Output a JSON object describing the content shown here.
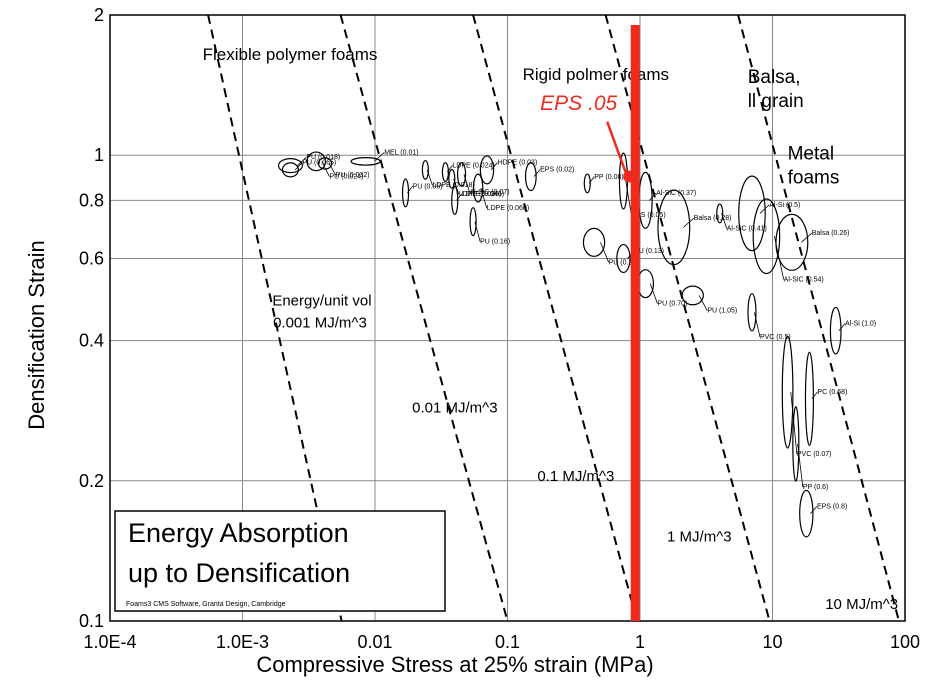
{
  "chart_data": {
    "type": "scatter",
    "title": "Energy Absorption up to Densification",
    "title_lines": [
      "Energy Absorption",
      "up to Densification"
    ],
    "credit": "Foams3  CMS Software, Granta Design, Cambridge",
    "xlabel": "Compressive Stress at 25% strain (MPa)",
    "ylabel": "Densification Strain",
    "x_scale": "log",
    "y_scale": "log",
    "xlim": [
      0.0001,
      100
    ],
    "ylim": [
      0.1,
      2
    ],
    "x_ticks": [
      {
        "value": 0.0001,
        "label": "1.0E-4"
      },
      {
        "value": 0.001,
        "label": "1.0E-3"
      },
      {
        "value": 0.01,
        "label": "0.01"
      },
      {
        "value": 0.1,
        "label": "0.1"
      },
      {
        "value": 1,
        "label": "1"
      },
      {
        "value": 10,
        "label": "10"
      },
      {
        "value": 100,
        "label": "100"
      }
    ],
    "y_ticks": [
      {
        "value": 0.1,
        "label": "0.1"
      },
      {
        "value": 0.2,
        "label": "0.2"
      },
      {
        "value": 0.4,
        "label": "0.4"
      },
      {
        "value": 0.6,
        "label": "0.6"
      },
      {
        "value": 0.8,
        "label": "0.8"
      },
      {
        "value": 1,
        "label": "1"
      },
      {
        "value": 2,
        "label": "2"
      }
    ],
    "grid": true,
    "energy_contours": [
      {
        "label": "Energy/unit vol",
        "label2": "0.001 MJ/m^3",
        "x_at_top": 0.00055,
        "x_at_bottom": 0.0056
      },
      {
        "label": "0.01 MJ/m^3",
        "x_at_top": 0.0055,
        "x_at_bottom": 0.1
      },
      {
        "label": "0.1 MJ/m^3",
        "x_at_top": 0.055,
        "x_at_bottom": 0.95
      },
      {
        "label": "1 MJ/m^3",
        "x_at_top": 0.55,
        "x_at_bottom": 9.5
      },
      {
        "label": "10 MJ/m^3",
        "x_at_top": 5.5,
        "x_at_bottom": 90
      }
    ],
    "group_labels": [
      {
        "text": "Flexible polymer foams",
        "x": 0.0005,
        "y": 1.6
      },
      {
        "text": "Rigid polmer foams",
        "x": 0.13,
        "y": 1.45
      },
      {
        "text": "Balsa,",
        "text2": "ll grain",
        "x": 6.5,
        "y": 1.43
      },
      {
        "text": "Metal",
        "text2": "foams",
        "x": 13,
        "y": 0.98
      }
    ],
    "highlight": {
      "label": "EPS .05",
      "x": 0.92,
      "color": "#ee2b1e",
      "marker_y": 0.9
    },
    "materials": [
      {
        "label": "PU (0.018)",
        "x": 0.0023,
        "y": 0.95,
        "rx": 0.09,
        "ry": 0.015
      },
      {
        "label": "PU (0.024)",
        "x": 0.0036,
        "y": 0.97,
        "rx": 0.07,
        "ry": 0.02
      },
      {
        "label": "PU (0.065)",
        "x": 0.0023,
        "y": 0.93,
        "rx": 0.06,
        "ry": 0.015
      },
      {
        "label": "PU (0.032)",
        "x": 0.0042,
        "y": 0.96,
        "rx": 0.05,
        "ry": 0.012
      },
      {
        "label": "MEL (0.01)",
        "x": 0.0085,
        "y": 0.97,
        "rx": 0.11,
        "ry": 0.008
      },
      {
        "label": "LDPE (0.018)",
        "x": 0.024,
        "y": 0.93,
        "rx": 0.02,
        "ry": 0.02
      },
      {
        "label": "LDPE (0.024)",
        "x": 0.034,
        "y": 0.92,
        "rx": 0.02,
        "ry": 0.02
      },
      {
        "label": "Al-SiC (0.07)",
        "x": 0.045,
        "y": 0.91,
        "rx": 0.03,
        "ry": 0.025
      },
      {
        "label": "HDPE (0.03)",
        "x": 0.07,
        "y": 0.93,
        "rx": 0.05,
        "ry": 0.03
      },
      {
        "label": "LDPE (0.035)",
        "x": 0.038,
        "y": 0.89,
        "rx": 0.02,
        "ry": 0.02
      },
      {
        "label": "PU (0.06)",
        "x": 0.017,
        "y": 0.83,
        "rx": 0.015,
        "ry": 0.03
      },
      {
        "label": "LDPE (0.060)",
        "x": 0.06,
        "y": 0.85,
        "rx": 0.035,
        "ry": 0.03
      },
      {
        "label": "LDPE (0.046)",
        "x": 0.04,
        "y": 0.8,
        "rx": 0.015,
        "ry": 0.03
      },
      {
        "label": "PU (0.16)",
        "x": 0.055,
        "y": 0.72,
        "rx": 0.015,
        "ry": 0.03
      },
      {
        "label": "EPS (0.02)",
        "x": 0.15,
        "y": 0.9,
        "rx": 0.04,
        "ry": 0.03
      },
      {
        "label": "EPS (0.05)",
        "x": 0.75,
        "y": 0.88,
        "rx": 0.03,
        "ry": 0.06
      },
      {
        "label": "PP (0.08)",
        "x": 0.4,
        "y": 0.87,
        "rx": 0.015,
        "ry": 0.02
      },
      {
        "label": "PU (0.30)",
        "x": 0.45,
        "y": 0.65,
        "rx": 0.08,
        "ry": 0.03
      },
      {
        "label": "PU (0.13)",
        "x": 0.75,
        "y": 0.6,
        "rx": 0.05,
        "ry": 0.03
      },
      {
        "label": "PU (0.70)",
        "x": 1.1,
        "y": 0.53,
        "rx": 0.06,
        "ry": 0.03
      },
      {
        "label": "Al-SiC (0.37)",
        "x": 1.1,
        "y": 0.8,
        "rx": 0.05,
        "ry": 0.06
      },
      {
        "label": "Al-SiC (0.41)",
        "x": 4,
        "y": 0.75,
        "rx": 0.02,
        "ry": 0.02
      },
      {
        "label": "Balsa (0.28)",
        "x": 1.8,
        "y": 0.7,
        "rx": 0.12,
        "ry": 0.08
      },
      {
        "label": "PU (1.05)",
        "x": 2.5,
        "y": 0.5,
        "rx": 0.08,
        "ry": 0.02
      },
      {
        "label": "Al-Si (0.5)",
        "x": 7,
        "y": 0.75,
        "rx": 0.1,
        "ry": 0.08
      },
      {
        "label": "Al-SiC (0.54)",
        "x": 9,
        "y": 0.67,
        "rx": 0.1,
        "ry": 0.08
      },
      {
        "label": "Balsa (0.26)",
        "x": 14,
        "y": 0.65,
        "rx": 0.12,
        "ry": 0.06
      },
      {
        "label": "PVC (0.5)",
        "x": 7,
        "y": 0.46,
        "rx": 0.03,
        "ry": 0.04
      },
      {
        "label": "Al-Si (1.0)",
        "x": 30,
        "y": 0.42,
        "rx": 0.04,
        "ry": 0.05
      },
      {
        "label": "PVC (0.07)",
        "x": 13,
        "y": 0.31,
        "rx": 0.04,
        "ry": 0.12
      },
      {
        "label": "PC (0.68)",
        "x": 19,
        "y": 0.3,
        "rx": 0.03,
        "ry": 0.1
      },
      {
        "label": "PP (0.6)",
        "x": 15,
        "y": 0.24,
        "rx": 0.02,
        "ry": 0.08
      },
      {
        "label": "EPS (0.8)",
        "x": 18,
        "y": 0.17,
        "rx": 0.05,
        "ry": 0.05
      }
    ]
  }
}
